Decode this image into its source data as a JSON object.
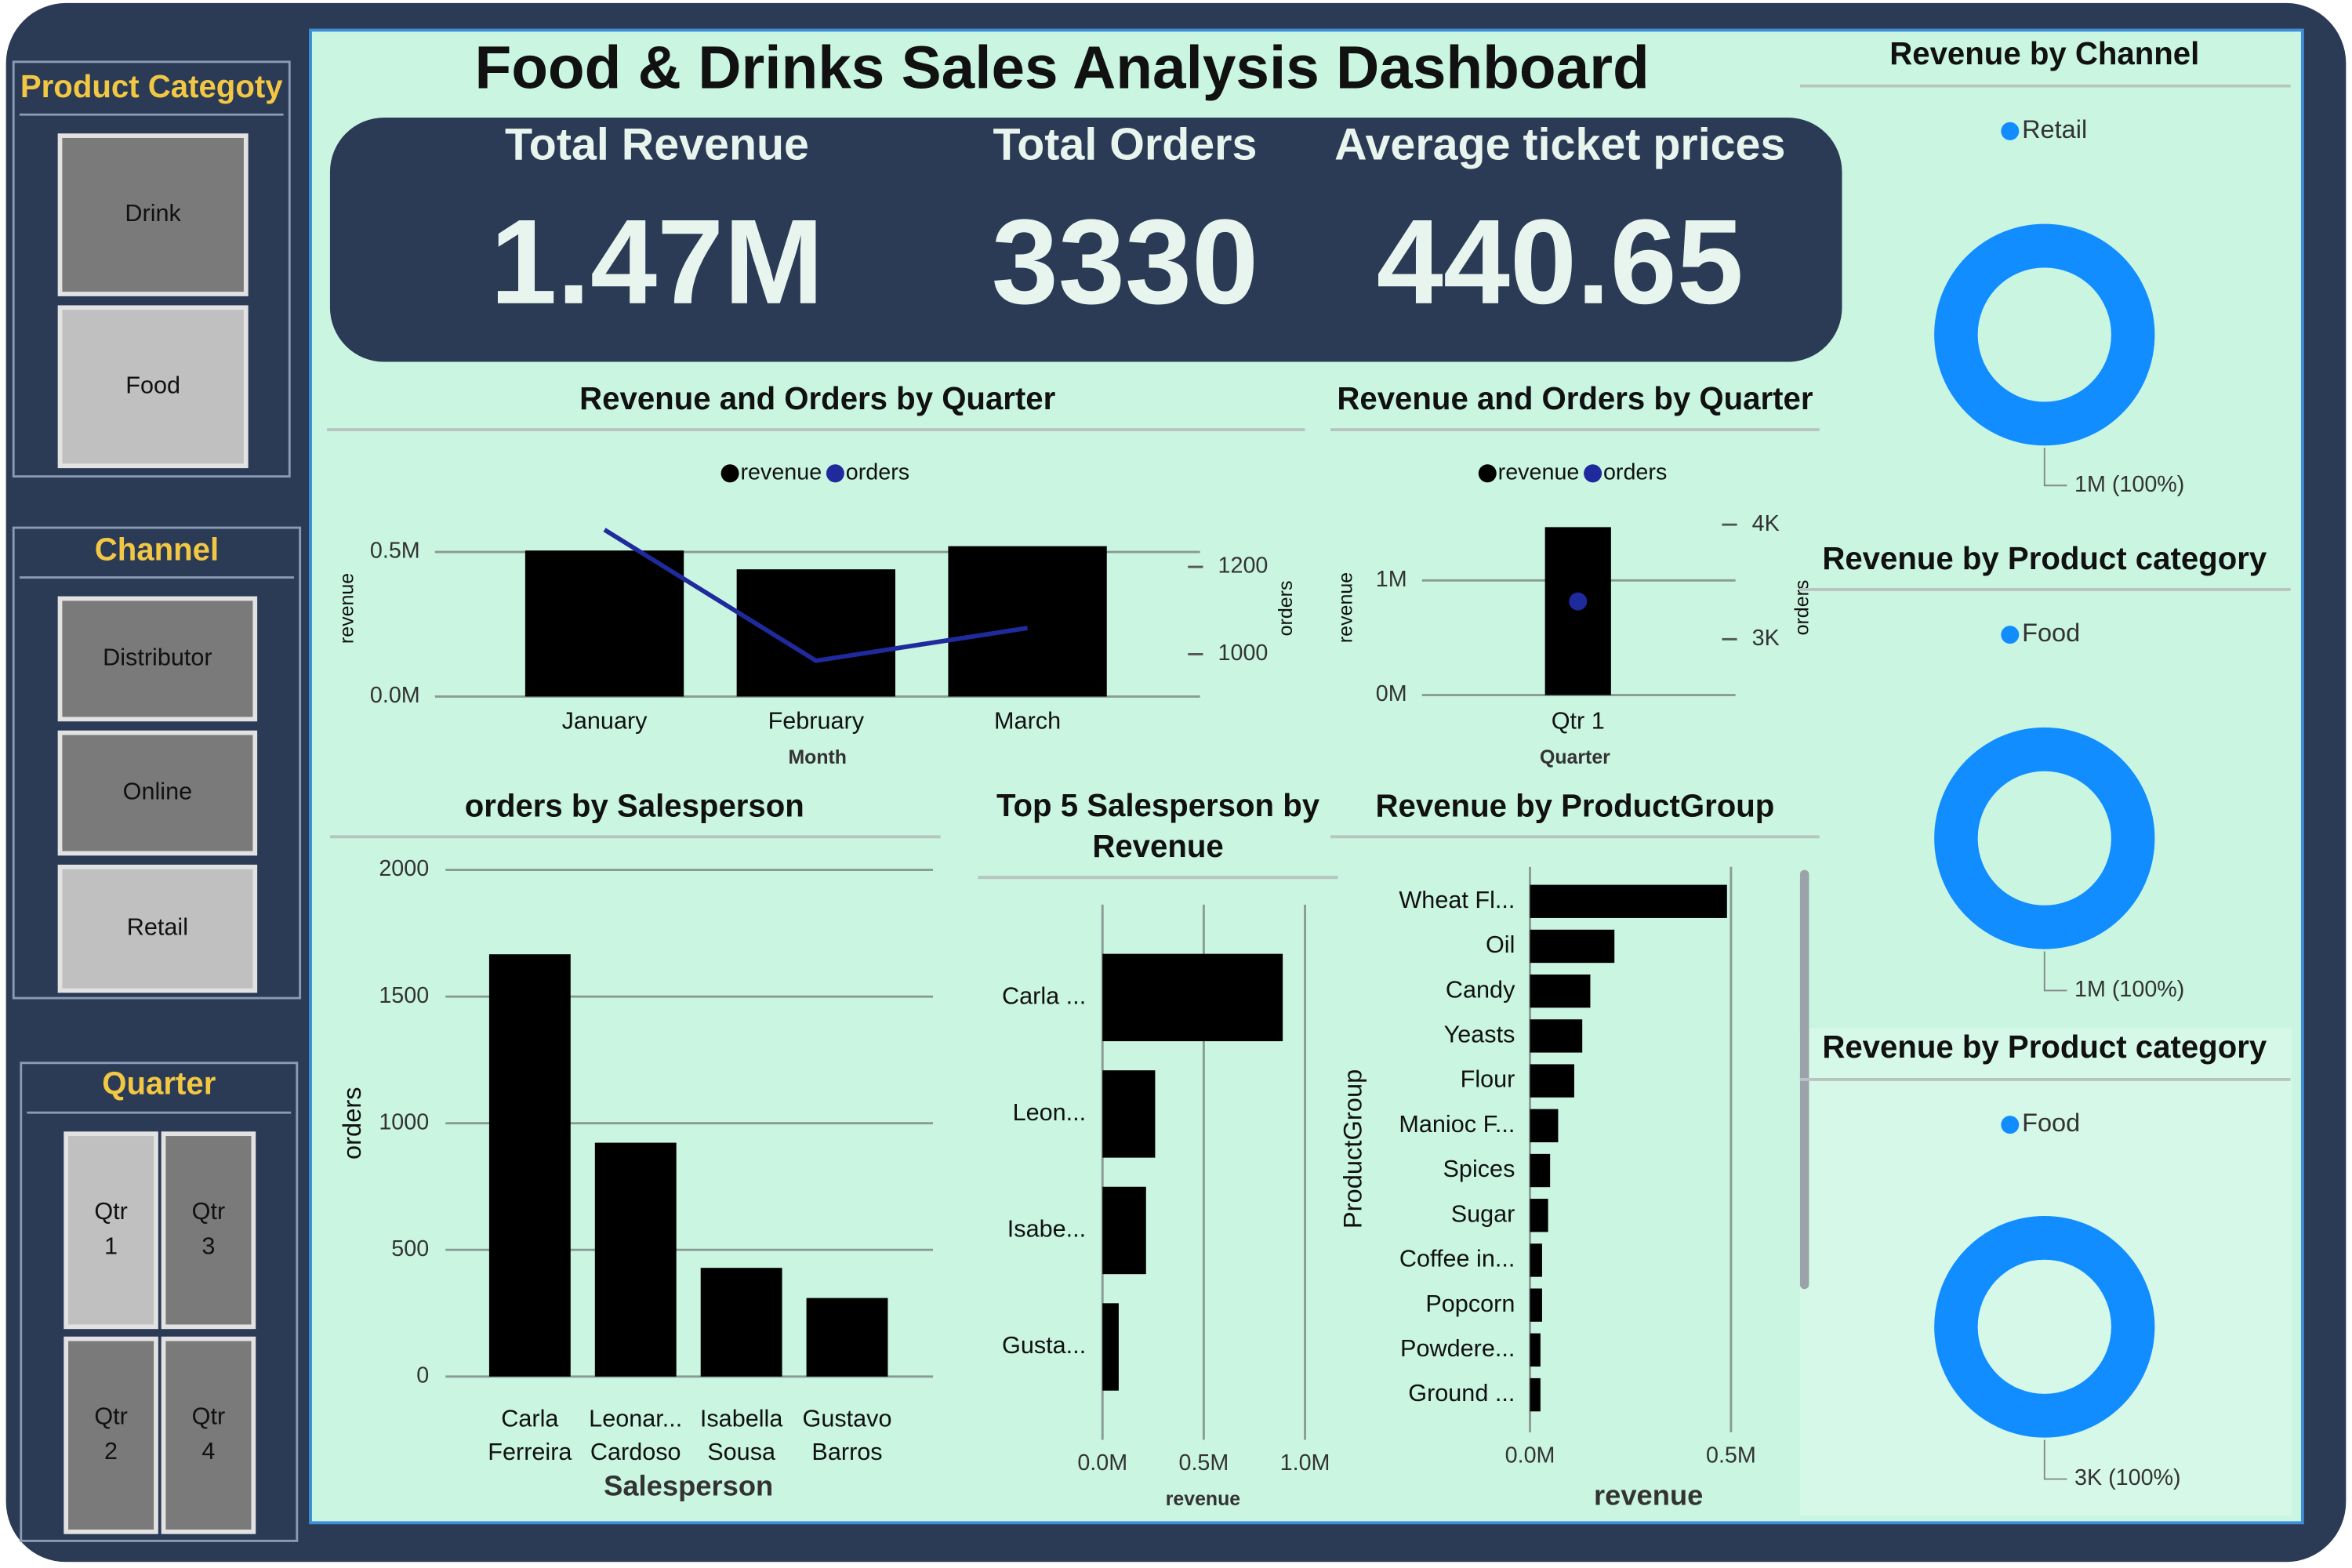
{
  "title": "Food & Drinks Sales Analysis Dashboard",
  "slicers": [
    {
      "title": "Product Categoty",
      "items": [
        "Drink",
        "Food"
      ]
    },
    {
      "title": "Channel",
      "items": [
        "Distributor",
        "Online",
        "Retail"
      ]
    },
    {
      "title": "Quarter",
      "items": [
        "Qtr 1",
        "Qtr 3",
        "Qtr 2",
        "Qtr 4"
      ]
    }
  ],
  "kpis": [
    {
      "label": "Total Revenue",
      "value": "1.47M"
    },
    {
      "label": "Total Orders",
      "value": "3330"
    },
    {
      "label": "Average ticket prices",
      "value": "440.65"
    }
  ],
  "chart_data": [
    {
      "type": "combo",
      "title": "Revenue and Orders by Quarter",
      "categories": [
        "January",
        "February",
        "March"
      ],
      "series": [
        {
          "name": "revenue",
          "color": "#000000",
          "values": [
            505000,
            440000,
            520000
          ]
        },
        {
          "name": "orders",
          "color": "#1f2a9c",
          "axis": "y2",
          "values": [
            1285,
            985,
            1060
          ]
        }
      ],
      "ylim": [
        0,
        610000
      ],
      "yticks": [
        {
          "value": 0,
          "label": "0.0M"
        },
        {
          "value": 500000,
          "label": "0.5M"
        }
      ],
      "y2lim": [
        903,
        1307
      ],
      "y2ticks": [
        1000,
        1200
      ],
      "xlabel": "Month",
      "ylabel": "revenue",
      "y2label": "orders",
      "grid": true
    },
    {
      "type": "combo",
      "title": "Revenue and Orders by Quarter",
      "categories": [
        "Qtr 1"
      ],
      "series": [
        {
          "name": "revenue",
          "color": "#000000",
          "values": [
            1465000
          ]
        },
        {
          "name": "orders",
          "color": "#1f2a9c",
          "axis": "y2",
          "values": [
            3330
          ]
        }
      ],
      "ylim": [
        0,
        1526000
      ],
      "yticks": [
        {
          "value": 0,
          "label": "0M"
        },
        {
          "value": 1000000,
          "label": "1M"
        }
      ],
      "y2lim": [
        2513,
        4039
      ],
      "y2ticks": [
        {
          "value": 3000,
          "label": "3K"
        },
        {
          "value": 4000,
          "label": "4K"
        }
      ],
      "xlabel": "Quarter",
      "ylabel": "revenue",
      "y2label": "orders",
      "grid": true
    },
    {
      "type": "bar",
      "title": "orders by Salesperson",
      "categories": [
        "Carla Ferreira",
        "Leonar... Cardoso",
        "Isabella Sousa",
        "Gustavo Barros"
      ],
      "values": [
        1667,
        923,
        429,
        310
      ],
      "color": "#000000",
      "ylim": [
        0,
        2000
      ],
      "yticks": [
        0,
        500,
        1000,
        1500,
        2000
      ],
      "xlabel": "Salesperson",
      "ylabel": "orders",
      "grid": true
    },
    {
      "type": "hbar",
      "title": "Top 5 Salesperson by Revenue",
      "categories": [
        "Carla ...",
        "Leon...",
        "Isabe...",
        "Gusta..."
      ],
      "values": [
        890000,
        260000,
        215000,
        80000
      ],
      "color": "#000000",
      "xlim": [
        0,
        1000000
      ],
      "xticks": [
        {
          "value": 0,
          "label": "0.0M"
        },
        {
          "value": 500000,
          "label": "0.5M"
        },
        {
          "value": 1000000,
          "label": "1.0M"
        }
      ],
      "xlabel": "revenue",
      "grid": true
    },
    {
      "type": "hbar",
      "title": "Revenue by ProductGroup",
      "categories": [
        "Wheat Fl...",
        "Oil",
        "Candy",
        "Yeasts",
        "Flour",
        "Manioc F...",
        "Spices",
        "Sugar",
        "Coffee in...",
        "Popcorn",
        "Powdere...",
        "Ground ..."
      ],
      "values": [
        490000,
        210000,
        150000,
        130000,
        110000,
        70000,
        50000,
        45000,
        30000,
        30000,
        26000,
        26000
      ],
      "color": "#000000",
      "xlim": [
        0,
        500000
      ],
      "xticks": [
        {
          "value": 0,
          "label": "0.0M"
        },
        {
          "value": 500000,
          "label": "0.5M"
        }
      ],
      "xlabel": "revenue",
      "ylabel": "ProductGroup",
      "grid": true
    },
    {
      "type": "donut",
      "title": "Revenue by Channel",
      "categories": [
        "Retail"
      ],
      "values": [
        1470000
      ],
      "value_labels": [
        "1M (100%)"
      ],
      "colors": [
        "#118dff"
      ]
    },
    {
      "type": "donut",
      "title": "Revenue by Product category",
      "categories": [
        "Food"
      ],
      "values": [
        1470000
      ],
      "value_labels": [
        "1M (100%)"
      ],
      "colors": [
        "#118dff"
      ]
    },
    {
      "type": "donut",
      "title": "Revenue by Product category",
      "categories": [
        "Food"
      ],
      "values": [
        3330
      ],
      "value_labels": [
        "3K (100%)"
      ],
      "colors": [
        "#118dff"
      ]
    }
  ]
}
